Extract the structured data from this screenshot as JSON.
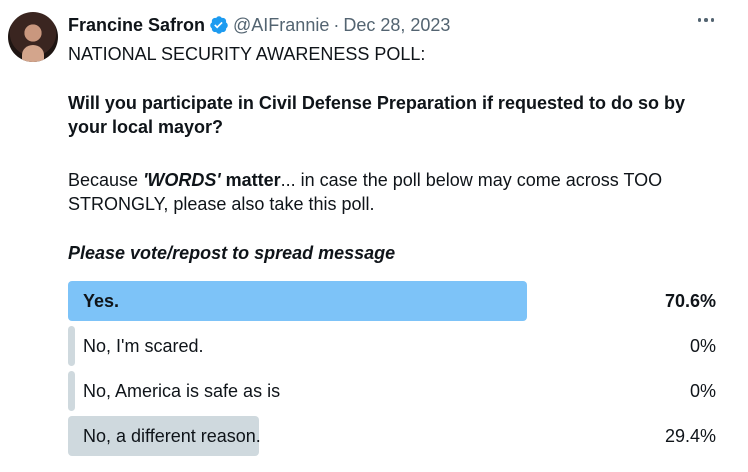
{
  "author": {
    "display_name": "Francine Safron",
    "handle": "@AIFrannie",
    "separator": "·",
    "date": "Dec 28, 2023",
    "verified_icon": "verified-badge-icon",
    "verified_color": "#1d9bf0"
  },
  "tweet": {
    "line1": "NATIONAL SECURITY AWARENESS POLL:",
    "question": "Will you participate in Civil Defense Preparation if requested to do so by your local mayor?",
    "because": "Because ",
    "words": "'WORDS'",
    "matter": " matter",
    "rest": "... in case the poll below may come across TOO STRONGLY, please also take this poll.",
    "vote_prompt": "Please vote/repost to spread message"
  },
  "poll": {
    "winner_color": "#7dc3f8",
    "other_color": "#cfd9de",
    "options": [
      {
        "label": "Yes.",
        "percent_text": "70.6%",
        "percent": 70.6
      },
      {
        "label": "No, I'm scared.",
        "percent_text": "0%",
        "percent": 0
      },
      {
        "label": "No, America is safe as is",
        "percent_text": "0%",
        "percent": 0
      },
      {
        "label": "No, a different reason.",
        "percent_text": "29.4%",
        "percent": 29.4
      }
    ]
  }
}
